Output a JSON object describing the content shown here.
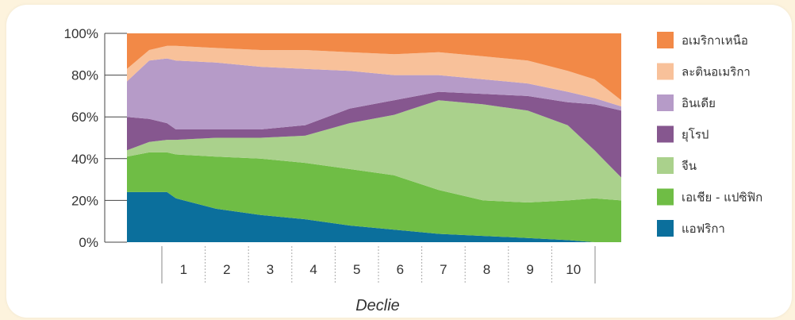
{
  "chart_data": {
    "type": "area",
    "stacked": true,
    "normalized": true,
    "xlabel": "Declie",
    "ylabel": "",
    "ylim": [
      0,
      100
    ],
    "yticks": [
      "0%",
      "20%",
      "40%",
      "60%",
      "80%",
      "100%"
    ],
    "xticks": [
      "1",
      "2",
      "3",
      "4",
      "5",
      "6",
      "7",
      "8",
      "9",
      "10"
    ],
    "grid": false,
    "legend_position": "right",
    "x": [
      0,
      0.5,
      0.9,
      1.1,
      2,
      3,
      4,
      5,
      6,
      7,
      8,
      9,
      9.9,
      10.5,
      11.1
    ],
    "series": [
      {
        "name": "แอฟริกา",
        "color": "#0b6f9c",
        "values": [
          24,
          24,
          24,
          21,
          16,
          13,
          11,
          8,
          6,
          4,
          3,
          2,
          1,
          0,
          0
        ]
      },
      {
        "name": "เอเชีย - แปซิฟิก",
        "color": "#6fbd45",
        "values": [
          17,
          19,
          19,
          21,
          25,
          27,
          27,
          27,
          26,
          21,
          17,
          17,
          19,
          21,
          20
        ]
      },
      {
        "name": "จีน",
        "color": "#aad18c",
        "values": [
          3,
          5,
          6,
          7,
          9,
          10,
          13,
          22,
          29,
          43,
          46,
          44,
          36,
          23,
          11
        ]
      },
      {
        "name": "ยุโรป",
        "color": "#86578f",
        "values": [
          16,
          11,
          8,
          5,
          4,
          4,
          5,
          7,
          7,
          4,
          5,
          7,
          11,
          22,
          32
        ]
      },
      {
        "name": "อินเดีย",
        "color": "#b69bc8",
        "values": [
          17,
          28,
          31,
          33,
          32,
          30,
          27,
          18,
          12,
          8,
          7,
          6,
          5,
          3,
          2
        ]
      },
      {
        "name": "ละตินอเมริกา",
        "color": "#f8c19a",
        "values": [
          6,
          5,
          6,
          7,
          7,
          8,
          9,
          9,
          10,
          11,
          11,
          11,
          10,
          9,
          3
        ]
      },
      {
        "name": "อเมริกาเหนือ",
        "color": "#f28947",
        "values": [
          17,
          8,
          6,
          6,
          7,
          8,
          8,
          9,
          10,
          9,
          11,
          13,
          18,
          22,
          32
        ]
      }
    ]
  }
}
